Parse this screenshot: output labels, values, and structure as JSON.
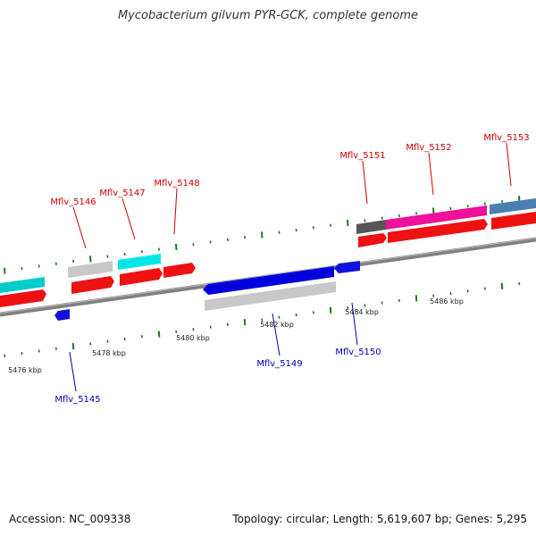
{
  "title": "Mycobacterium gilvum PYR-GCK, complete genome",
  "footer": {
    "accession": "Accession: NC_009338",
    "summary": "Topology: circular; Length: 5,619,607 bp; Genes: 5,295"
  },
  "colors": {
    "background": "#ffffff",
    "backbone": "#808080",
    "tick": "#1a7a1a",
    "forward_label": "#cc0000",
    "reverse_label": "#0000aa",
    "cds": "#ee1111",
    "gene_cyan": "#00cccc",
    "gene_gray": "#c8c8c8",
    "gene_dark": "#555555",
    "gene_magenta": "#ee1199",
    "gene_steelblue": "#4a7fb0",
    "gene_blue": "#0000dd"
  },
  "scale_labels": [
    "5476 kbp",
    "5478 kbp",
    "5480 kbp",
    "5482 kbp",
    "5484 kbp",
    "5486 kbp"
  ],
  "gene_labels": [
    {
      "text": "Mflv_5146",
      "strand": "forward"
    },
    {
      "text": "Mflv_5147",
      "strand": "forward"
    },
    {
      "text": "Mflv_5148",
      "strand": "forward"
    },
    {
      "text": "Mflv_5151",
      "strand": "forward"
    },
    {
      "text": "Mflv_5152",
      "strand": "forward"
    },
    {
      "text": "Mflv_5153",
      "strand": "forward"
    },
    {
      "text": "Mflv_5145",
      "strand": "reverse"
    },
    {
      "text": "Mflv_5149",
      "strand": "reverse"
    },
    {
      "text": "Mflv_5150",
      "strand": "reverse"
    }
  ]
}
